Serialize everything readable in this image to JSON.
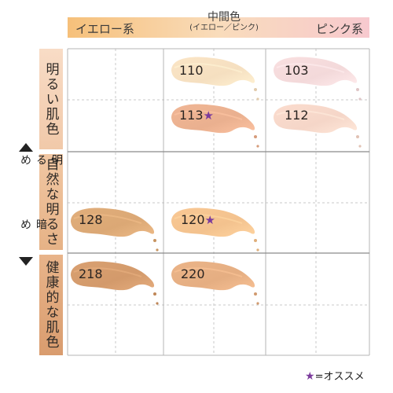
{
  "columns": {
    "yellow": "イエロー系",
    "mid_main": "中間色",
    "mid_sub": "(イエロー／ピンク)",
    "pink": "ピンク系"
  },
  "rows": {
    "bright": "明るい肌色",
    "natural": "自然な明るさ",
    "healthy": "健康的な肌色"
  },
  "axis": {
    "top": "明るめ",
    "bottom": "暗め"
  },
  "shades": [
    {
      "code": "110",
      "recommended": false,
      "color": "#f5dfc0"
    },
    {
      "code": "103",
      "recommended": false,
      "color": "#f3d9da"
    },
    {
      "code": "113",
      "recommended": true,
      "color": "#eab08f"
    },
    {
      "code": "112",
      "recommended": false,
      "color": "#f5d6c8"
    },
    {
      "code": "128",
      "recommended": false,
      "color": "#dba875"
    },
    {
      "code": "120",
      "recommended": true,
      "color": "#f3c28e"
    },
    {
      "code": "218",
      "recommended": false,
      "color": "#d39a6b"
    },
    {
      "code": "220",
      "recommended": false,
      "color": "#e5ae82"
    }
  ],
  "star_symbol": "★",
  "legend": {
    "star": "★",
    "text": "=オススメ"
  },
  "colors": {
    "star": "#7b3b9c",
    "header_yellow": "#f6c07a",
    "header_pink": "#f7c9cf"
  }
}
